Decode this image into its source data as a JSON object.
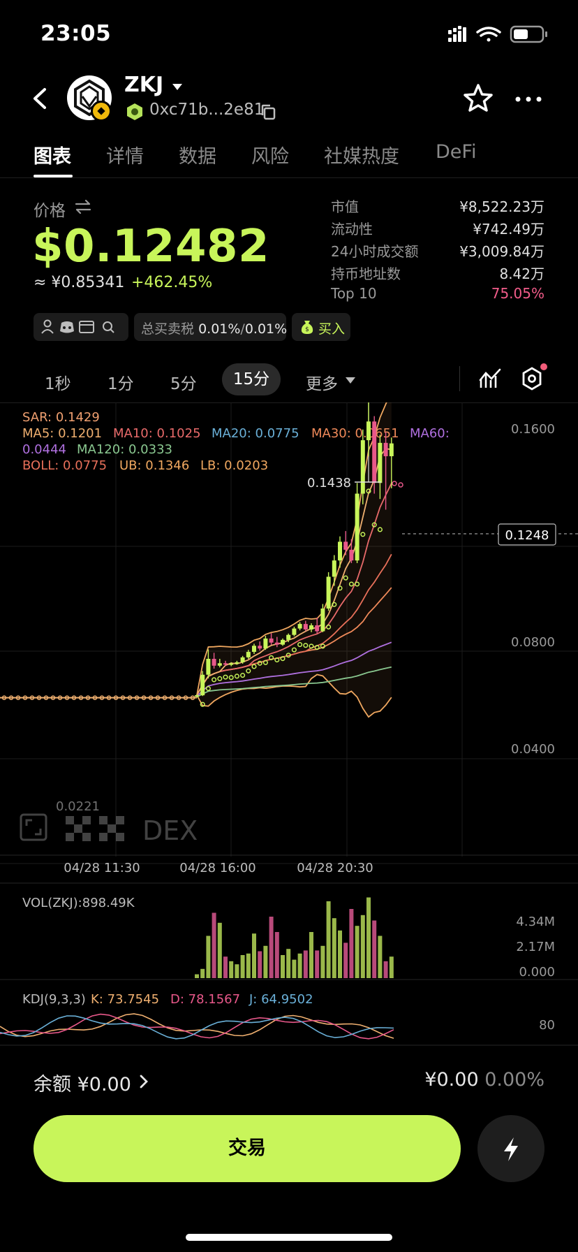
{
  "status": {
    "time": "23:05"
  },
  "header": {
    "token_name": "ZKJ",
    "address": "0xc71b...2e81"
  },
  "tabs": [
    "图表",
    "详情",
    "数据",
    "风险",
    "社媒热度",
    "DeFi"
  ],
  "price": {
    "label": "价格",
    "usd": "$0.12482",
    "cny": "≈ ¥0.85341",
    "change": "+462.45%"
  },
  "stats": [
    {
      "label": "市值",
      "value": "¥8,522.23万"
    },
    {
      "label": "流动性",
      "value": "¥742.49万"
    },
    {
      "label": "24小时成交额",
      "value": "¥3,009.84万"
    },
    {
      "label": "持币地址数",
      "value": "8.42万"
    },
    {
      "label": "Top 10",
      "value": "75.05%"
    }
  ],
  "colors": {
    "accent": "#c8f55a",
    "down": "#e8588a",
    "top10": "#f25c8a"
  },
  "chips": {
    "tax_label": "总买卖税",
    "tax_buy": "0.01%",
    "tax_sep": "/",
    "tax_sell": "0.01%",
    "buy": "买入",
    "social_icons": [
      "person-icon",
      "discord-icon",
      "card-icon",
      "search-icon"
    ]
  },
  "timeframes": {
    "t1": "1秒",
    "t2": "1分",
    "t3": "5分",
    "t4": "15分",
    "more": "更多"
  },
  "indicators": {
    "sar": "SAR: 0.1429",
    "ma5": "MA5: 0.1201",
    "ma10": "MA10: 0.1025",
    "ma20": "MA20: 0.0775",
    "ma30": "MA30: 0.0651",
    "ma60_label": "MA60:",
    "ma60_value": "0.0444",
    "ma120": "MA120: 0.0333",
    "boll": "BOLL: 0.0775",
    "ub": "UB: 0.1346",
    "lb": "LB: 0.0203"
  },
  "chart_data": {
    "type": "candlestick",
    "y_ticks": [
      "0.1600",
      "0.0800",
      "0.0400"
    ],
    "x_ticks": [
      "04/28 11:30",
      "04/28 16:00",
      "04/28 20:30"
    ],
    "high_label": "0.1438",
    "current_price_label": "0.1248",
    "low_label": "0.0221",
    "candles": [
      {
        "o": 0.0226,
        "h": 0.0234,
        "l": 0.0222,
        "c": 0.0231
      },
      {
        "o": 0.0231,
        "h": 0.033,
        "l": 0.0228,
        "c": 0.0315
      },
      {
        "o": 0.0315,
        "h": 0.042,
        "l": 0.03,
        "c": 0.038
      },
      {
        "o": 0.038,
        "h": 0.0405,
        "l": 0.034,
        "c": 0.0352
      },
      {
        "o": 0.0352,
        "h": 0.038,
        "l": 0.0345,
        "c": 0.0362
      },
      {
        "o": 0.0362,
        "h": 0.0372,
        "l": 0.0352,
        "c": 0.0358
      },
      {
        "o": 0.0358,
        "h": 0.0366,
        "l": 0.035,
        "c": 0.0361
      },
      {
        "o": 0.0361,
        "h": 0.0372,
        "l": 0.0356,
        "c": 0.0366
      },
      {
        "o": 0.0366,
        "h": 0.0392,
        "l": 0.036,
        "c": 0.0386
      },
      {
        "o": 0.0386,
        "h": 0.0418,
        "l": 0.038,
        "c": 0.0409
      },
      {
        "o": 0.0409,
        "h": 0.0445,
        "l": 0.04,
        "c": 0.0436
      },
      {
        "o": 0.0436,
        "h": 0.0455,
        "l": 0.0415,
        "c": 0.0424
      },
      {
        "o": 0.0424,
        "h": 0.048,
        "l": 0.0418,
        "c": 0.0468
      },
      {
        "o": 0.0468,
        "h": 0.0492,
        "l": 0.044,
        "c": 0.045
      },
      {
        "o": 0.045,
        "h": 0.0475,
        "l": 0.043,
        "c": 0.0441
      },
      {
        "o": 0.0441,
        "h": 0.0468,
        "l": 0.0436,
        "c": 0.0462
      },
      {
        "o": 0.0462,
        "h": 0.049,
        "l": 0.0452,
        "c": 0.0484
      },
      {
        "o": 0.0484,
        "h": 0.052,
        "l": 0.0478,
        "c": 0.0512
      },
      {
        "o": 0.0512,
        "h": 0.054,
        "l": 0.0504,
        "c": 0.0532
      },
      {
        "o": 0.0532,
        "h": 0.0546,
        "l": 0.05,
        "c": 0.0508
      },
      {
        "o": 0.0508,
        "h": 0.0535,
        "l": 0.0496,
        "c": 0.0526
      },
      {
        "o": 0.0526,
        "h": 0.056,
        "l": 0.049,
        "c": 0.05
      },
      {
        "o": 0.05,
        "h": 0.062,
        "l": 0.0496,
        "c": 0.06
      },
      {
        "o": 0.06,
        "h": 0.076,
        "l": 0.059,
        "c": 0.074
      },
      {
        "o": 0.074,
        "h": 0.083,
        "l": 0.07,
        "c": 0.081
      },
      {
        "o": 0.081,
        "h": 0.09,
        "l": 0.078,
        "c": 0.088
      },
      {
        "o": 0.088,
        "h": 0.092,
        "l": 0.083,
        "c": 0.085
      },
      {
        "o": 0.085,
        "h": 0.089,
        "l": 0.08,
        "c": 0.081
      },
      {
        "o": 0.081,
        "h": 0.11,
        "l": 0.08,
        "c": 0.106
      },
      {
        "o": 0.106,
        "h": 0.13,
        "l": 0.102,
        "c": 0.126
      },
      {
        "o": 0.126,
        "h": 0.1438,
        "l": 0.12,
        "c": 0.133
      },
      {
        "o": 0.133,
        "h": 0.135,
        "l": 0.106,
        "c": 0.11
      },
      {
        "o": 0.11,
        "h": 0.128,
        "l": 0.104,
        "c": 0.125
      },
      {
        "o": 0.125,
        "h": 0.129,
        "l": 0.1,
        "c": 0.12
      },
      {
        "o": 0.12,
        "h": 0.127,
        "l": 0.108,
        "c": 0.1248
      }
    ],
    "volume_label": "VOL(ZKJ):898.49K",
    "volume_ticks": [
      "4.34M",
      "2.17M",
      "0.000"
    ],
    "volumes": [
      0.05,
      0.12,
      0.55,
      0.85,
      0.72,
      0.28,
      0.22,
      0.18,
      0.3,
      0.32,
      0.58,
      0.35,
      0.42,
      0.8,
      0.6,
      0.3,
      0.38,
      0.24,
      0.32,
      0.36,
      0.6,
      0.36,
      0.42,
      1.0,
      0.78,
      0.62,
      0.46,
      0.9,
      0.68,
      0.82,
      1.05,
      0.75,
      0.55,
      0.22,
      0.28
    ],
    "kdj_label": "KDJ(9,3,3)",
    "kdj_k": "K: 73.7545",
    "kdj_d": "D: 78.1567",
    "kdj_j": "J: 64.9502",
    "kdj_tick": "80"
  },
  "bottom": {
    "balance_label": "余额 ¥0.00",
    "right_value": "¥0.00",
    "right_pct": "0.00%",
    "trade_button": "交易"
  },
  "watermark": "DEX"
}
